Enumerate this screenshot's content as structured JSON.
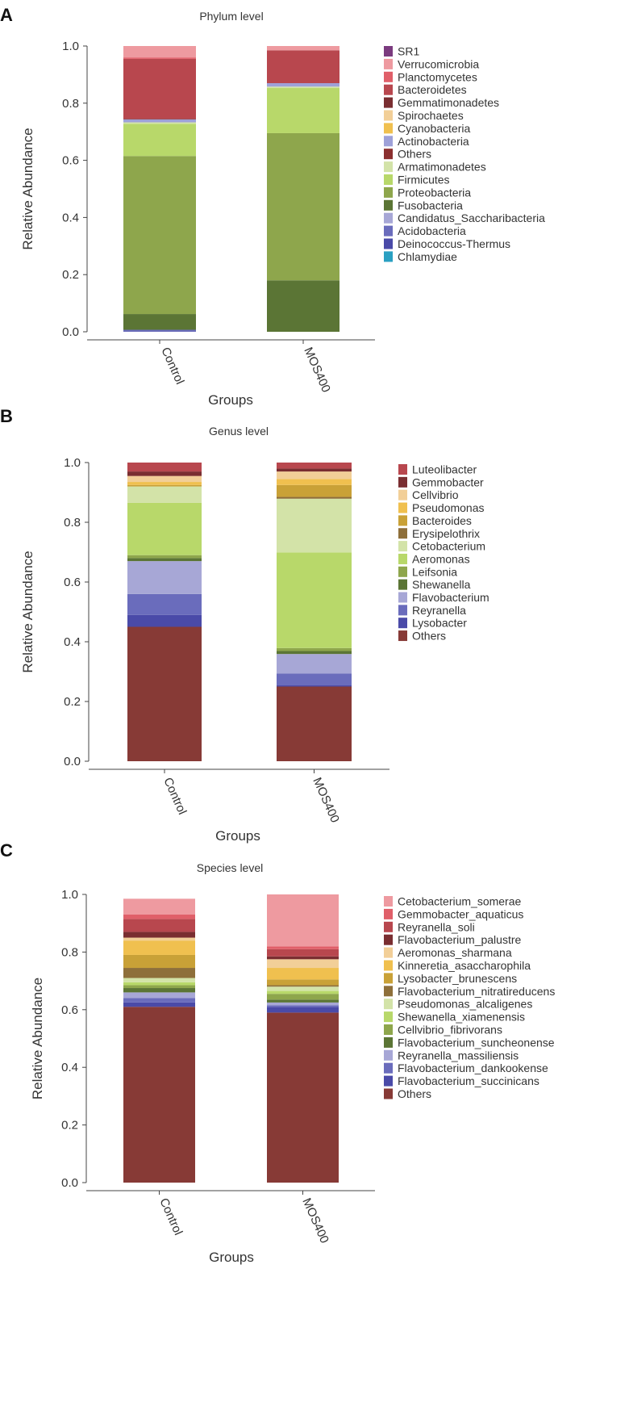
{
  "chart_data": [
    {
      "type": "bar",
      "stacked": true,
      "panel": "A",
      "title": "Phylum level",
      "xlabel": "Groups",
      "ylabel": "Relative Abundance",
      "ylim": [
        0,
        1
      ],
      "yticks": [
        "0.0",
        "0.2",
        "0.4",
        "0.6",
        "0.8",
        "1.0"
      ],
      "categories": [
        "Control",
        "MOS400"
      ],
      "series": [
        {
          "name": "SR1",
          "color": "#7b3b7f",
          "values": [
            0.0,
            0.0
          ]
        },
        {
          "name": "Verrucomicrobia",
          "color": "#ee9aa0",
          "values": [
            0.04,
            0.015
          ]
        },
        {
          "name": "Planctomycetes",
          "color": "#e05f69",
          "values": [
            0.005,
            0.0
          ]
        },
        {
          "name": "Bacteroidetes",
          "color": "#b8474e",
          "values": [
            0.21,
            0.115
          ]
        },
        {
          "name": "Gemmatimonadetes",
          "color": "#7a2e31",
          "values": [
            0.002,
            0.0
          ]
        },
        {
          "name": "Spirochaetes",
          "color": "#f2cf98",
          "values": [
            0.0,
            0.0
          ]
        },
        {
          "name": "Cyanobacteria",
          "color": "#f0c04f",
          "values": [
            0.0,
            0.0
          ]
        },
        {
          "name": "Actinobacteria",
          "color": "#9ea1d9",
          "values": [
            0.01,
            0.012
          ]
        },
        {
          "name": "Others",
          "color": "#8b2f2f",
          "values": [
            0.0,
            0.0
          ]
        },
        {
          "name": "Armatimonadetes",
          "color": "#d3e3a8",
          "values": [
            0.005,
            0.005
          ]
        },
        {
          "name": "Firmicutes",
          "color": "#b8d86a",
          "values": [
            0.113,
            0.158
          ]
        },
        {
          "name": "Proteobacteria",
          "color": "#8ea64c",
          "values": [
            0.553,
            0.515
          ]
        },
        {
          "name": "Fusobacteria",
          "color": "#5b7535",
          "values": [
            0.055,
            0.18
          ]
        },
        {
          "name": "Candidatus_Saccharibacteria",
          "color": "#a7a7d6",
          "values": [
            0.0,
            0.0
          ]
        },
        {
          "name": "Acidobacteria",
          "color": "#6a6cbc",
          "values": [
            0.005,
            0.0
          ]
        },
        {
          "name": "Deinococcus-Thermus",
          "color": "#4a4aa8",
          "values": [
            0.002,
            0.0
          ]
        },
        {
          "name": "Chlamydiae",
          "color": "#2aa0c2",
          "values": [
            0.0,
            0.0
          ]
        }
      ]
    },
    {
      "type": "bar",
      "stacked": true,
      "panel": "B",
      "title": "Genus level",
      "xlabel": "Groups",
      "ylabel": "Relative Abundance",
      "ylim": [
        0,
        1
      ],
      "yticks": [
        "0.0",
        "0.2",
        "0.4",
        "0.6",
        "0.8",
        "1.0"
      ],
      "categories": [
        "Control",
        "MOS400"
      ],
      "series": [
        {
          "name": "Luteolibacter",
          "color": "#b8474e",
          "values": [
            0.03,
            0.02
          ]
        },
        {
          "name": "Gemmobacter",
          "color": "#7a2e31",
          "values": [
            0.015,
            0.01
          ]
        },
        {
          "name": "Cellvibrio",
          "color": "#f2cf98",
          "values": [
            0.02,
            0.025
          ]
        },
        {
          "name": "Pseudomonas",
          "color": "#f0c04f",
          "values": [
            0.01,
            0.02
          ]
        },
        {
          "name": "Bacteroides",
          "color": "#c9a137",
          "values": [
            0.005,
            0.04
          ]
        },
        {
          "name": "Erysipelothrix",
          "color": "#8e6f3a",
          "values": [
            0.0,
            0.006
          ]
        },
        {
          "name": "Cetobacterium",
          "color": "#d3e3a8",
          "values": [
            0.055,
            0.18
          ]
        },
        {
          "name": "Aeromonas",
          "color": "#b8d86a",
          "values": [
            0.175,
            0.32
          ]
        },
        {
          "name": "Leifsonia",
          "color": "#8ea64c",
          "values": [
            0.01,
            0.01
          ]
        },
        {
          "name": "Shewanella",
          "color": "#5b7535",
          "values": [
            0.01,
            0.01
          ]
        },
        {
          "name": "Flavobacterium",
          "color": "#a7a7d6",
          "values": [
            0.11,
            0.065
          ]
        },
        {
          "name": "Reyranella",
          "color": "#6a6cbc",
          "values": [
            0.07,
            0.04
          ]
        },
        {
          "name": "Lysobacter",
          "color": "#4a4aa8",
          "values": [
            0.04,
            0.004
          ]
        },
        {
          "name": "Others",
          "color": "#873a36",
          "values": [
            0.45,
            0.25
          ]
        }
      ]
    },
    {
      "type": "bar",
      "stacked": true,
      "panel": "C",
      "title": "Species level",
      "xlabel": "Groups",
      "ylabel": "Relative Abundance",
      "ylim": [
        0,
        1
      ],
      "yticks": [
        "0.0",
        "0.2",
        "0.4",
        "0.6",
        "0.8",
        "1.0"
      ],
      "categories": [
        "Control",
        "MOS400"
      ],
      "series": [
        {
          "name": "Cetobacterium_somerae",
          "color": "#ee9aa0",
          "values": [
            0.055,
            0.18
          ]
        },
        {
          "name": "Gemmobacter_aquaticus",
          "color": "#e05f69",
          "values": [
            0.015,
            0.01
          ]
        },
        {
          "name": "Reyranella_soli",
          "color": "#b8474e",
          "values": [
            0.045,
            0.025
          ]
        },
        {
          "name": "Flavobacterium_palustre",
          "color": "#7a2e31",
          "values": [
            0.02,
            0.01
          ]
        },
        {
          "name": "Aeromonas_sharmana",
          "color": "#f2cf98",
          "values": [
            0.01,
            0.03
          ]
        },
        {
          "name": "Kinneretia_asaccharophila",
          "color": "#f0c04f",
          "values": [
            0.05,
            0.04
          ]
        },
        {
          "name": "Lysobacter_brunescens",
          "color": "#c9a137",
          "values": [
            0.045,
            0.02
          ]
        },
        {
          "name": "Flavobacterium_nitratireducens",
          "color": "#8e6f3a",
          "values": [
            0.035,
            0.005
          ]
        },
        {
          "name": "Pseudomonas_alcaligenes",
          "color": "#d3e3a8",
          "values": [
            0.015,
            0.015
          ]
        },
        {
          "name": "Shewanella_xiamenensis",
          "color": "#b8d86a",
          "values": [
            0.01,
            0.01
          ]
        },
        {
          "name": "Cellvibrio_fibrivorans",
          "color": "#8ea64c",
          "values": [
            0.01,
            0.02
          ]
        },
        {
          "name": "Flavobacterium_suncheonense",
          "color": "#5b7535",
          "values": [
            0.015,
            0.01
          ]
        },
        {
          "name": "Reyranella_massiliensis",
          "color": "#a7a7d6",
          "values": [
            0.02,
            0.01
          ]
        },
        {
          "name": "Flavobacterium_dankookense",
          "color": "#6a6cbc",
          "values": [
            0.015,
            0.005
          ]
        },
        {
          "name": "Flavobacterium_succinicans",
          "color": "#4a4aa8",
          "values": [
            0.015,
            0.02
          ]
        },
        {
          "name": "Others",
          "color": "#873a36",
          "values": [
            0.61,
            0.59
          ]
        }
      ]
    }
  ]
}
